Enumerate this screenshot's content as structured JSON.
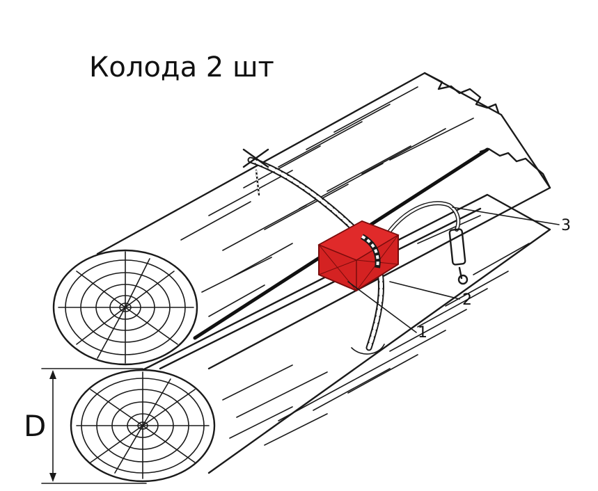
{
  "title": "Колода 2 шт",
  "dimension_label": "D",
  "callouts": [
    {
      "label": "1",
      "target": "explosive-charge"
    },
    {
      "label": "2",
      "target": "detonator"
    },
    {
      "label": "3",
      "target": "fuse-cord"
    }
  ],
  "colors": {
    "charge": "#d42222",
    "charge_edge": "#7a0c0c",
    "line": "#1a1a1a",
    "background": "#ffffff"
  }
}
